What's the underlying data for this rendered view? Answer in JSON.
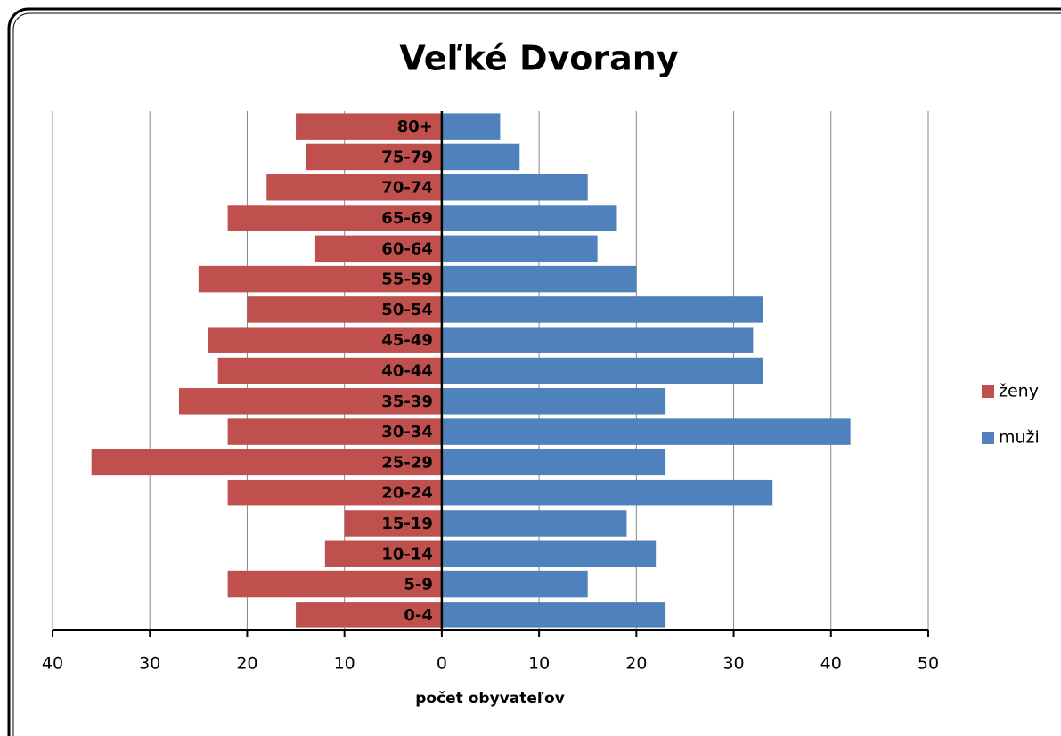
{
  "chart_data": {
    "type": "bar",
    "orientation": "horizontal",
    "stacked": true,
    "title": "Veľké Dvorany",
    "xlabel": "počet obyvateľov",
    "categories": [
      "0-4",
      "5-9",
      "10-14",
      "15-19",
      "20-24",
      "25-29",
      "30-34",
      "35-39",
      "40-44",
      "45-49",
      "50-54",
      "55-59",
      "60-64",
      "65-69",
      "70-74",
      "75-79",
      "80+"
    ],
    "series": [
      {
        "name": "ženy",
        "color": "#c0504d",
        "values": [
          -15,
          -22,
          -12,
          -10,
          -22,
          -36,
          -22,
          -27,
          -23,
          -24,
          -20,
          -25,
          -13,
          -22,
          -18,
          -14,
          -15
        ]
      },
      {
        "name": "muži",
        "color": "#4f81bd",
        "values": [
          23,
          15,
          22,
          19,
          34,
          23,
          42,
          23,
          33,
          32,
          33,
          20,
          16,
          18,
          15,
          8,
          6
        ]
      }
    ],
    "xlim": [
      -40,
      50
    ],
    "xticks": [
      {
        "value": -40,
        "label": "40"
      },
      {
        "value": -30,
        "label": "30"
      },
      {
        "value": -20,
        "label": "20"
      },
      {
        "value": -10,
        "label": "10"
      },
      0,
      10,
      20,
      30,
      40,
      50
    ],
    "grid": true,
    "legend": "right"
  }
}
